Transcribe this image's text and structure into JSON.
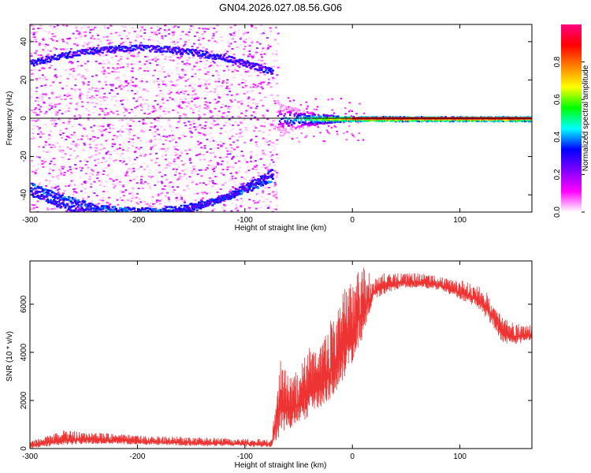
{
  "figure": {
    "title": "GN04.2026.027.08.56.G06"
  },
  "chart_data": [
    {
      "type": "heatmap",
      "title": "",
      "xlabel": "Height of straight line (km)",
      "ylabel": "Frequency (Hz)",
      "xlim": [
        -300,
        167
      ],
      "ylim": [
        -49,
        49
      ],
      "xticks": [
        -300,
        -200,
        -100,
        0,
        100
      ],
      "yticks": [
        -40,
        -20,
        0,
        20,
        40
      ],
      "colorbar": {
        "label": "Normalized spectral amplitude",
        "range": [
          0,
          1
        ],
        "ticks": [
          "0.0",
          "0.2",
          "0.4",
          "0.6",
          "0.8"
        ],
        "colormap": [
          "#ffffff",
          "#ff00ff",
          "#8000ff",
          "#0000ff",
          "#00ffff",
          "#00ff00",
          "#ffff00",
          "#ff8000",
          "#ff0000",
          "#ff0080"
        ]
      },
      "features": [
        {
          "name": "scattered-noise",
          "x": [
            -300,
            -70
          ],
          "y": [
            -49,
            49
          ]
        },
        {
          "name": "curved-arc",
          "x": [
            -300,
            -75
          ],
          "y_min": -48
        },
        {
          "name": "tone-band",
          "x": [
            -70,
            167
          ],
          "y": 0
        }
      ]
    },
    {
      "type": "line",
      "title": "",
      "xlabel": "Height of straight line (km)",
      "ylabel": "SNR (10 * v/v)",
      "xlim": [
        -300,
        167
      ],
      "ylim": [
        0,
        7800
      ],
      "xticks": [
        -300,
        -200,
        -100,
        0,
        100
      ],
      "yticks": [
        0,
        2000,
        4000,
        6000
      ],
      "series": [
        {
          "color": "#ee3333",
          "x": [
            -300,
            -270,
            -230,
            -190,
            -150,
            -110,
            -75,
            -68,
            -60,
            -50,
            -40,
            -30,
            -20,
            -10,
            0,
            10,
            20,
            30,
            40,
            60,
            80,
            100,
            110,
            120,
            130,
            140,
            150,
            160,
            167
          ],
          "y_low": [
            0,
            150,
            200,
            150,
            100,
            100,
            50,
            500,
            800,
            1000,
            1300,
            1700,
            2100,
            2600,
            3600,
            4600,
            6200,
            6400,
            6600,
            6700,
            6600,
            6200,
            6000,
            5700,
            5100,
            4400,
            4300,
            4400,
            4500
          ],
          "y_high": [
            300,
            750,
            650,
            520,
            480,
            420,
            380,
            3900,
            3000,
            3300,
            4300,
            4200,
            5400,
            6500,
            7000,
            7900,
            7100,
            7300,
            7300,
            7300,
            7200,
            7000,
            6900,
            6700,
            6300,
            5400,
            5300,
            5100,
            5200
          ]
        }
      ]
    }
  ]
}
